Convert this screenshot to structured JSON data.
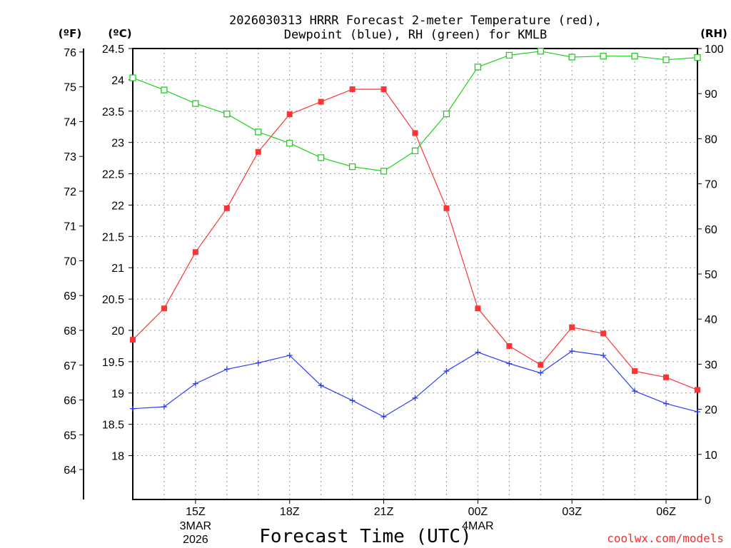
{
  "chart_data": {
    "type": "line",
    "title_lines": [
      "2026030313 HRRR Forecast 2-meter Temperature (red),",
      "Dewpoint (blue), RH (green) for KMLB"
    ],
    "units": {
      "fahrenheit": "(ºF)",
      "celsius": "(ºC)",
      "rh": "(RH)"
    },
    "xlabel": "Forecast Time (UTC)",
    "credit": "coolwx.com/models",
    "x_hours": [
      13,
      14,
      15,
      16,
      17,
      18,
      19,
      20,
      21,
      22,
      23,
      24,
      25,
      26,
      27,
      28,
      29,
      30,
      31
    ],
    "xlim": [
      13,
      31
    ],
    "x_ticks": [
      {
        "hour": 15,
        "label": "15Z",
        "sub1": "3MAR",
        "sub2": "2026"
      },
      {
        "hour": 18,
        "label": "18Z",
        "sub1": "",
        "sub2": ""
      },
      {
        "hour": 21,
        "label": "21Z",
        "sub1": "",
        "sub2": ""
      },
      {
        "hour": 24,
        "label": "00Z",
        "sub1": "4MAR",
        "sub2": ""
      },
      {
        "hour": 27,
        "label": "03Z",
        "sub1": "",
        "sub2": ""
      },
      {
        "hour": 30,
        "label": "06Z",
        "sub1": "",
        "sub2": ""
      }
    ],
    "celsius_axis": {
      "ylim": [
        17.3,
        24.5
      ],
      "ticks": [
        18,
        18.5,
        19,
        19.5,
        20,
        20.5,
        21,
        21.5,
        22,
        22.5,
        23,
        23.5,
        24,
        24.5
      ]
    },
    "fahrenheit_axis": {
      "ticks": [
        64,
        65,
        66,
        67,
        68,
        69,
        70,
        71,
        72,
        73,
        74,
        75,
        76
      ]
    },
    "rh_axis": {
      "ylim": [
        0,
        100
      ],
      "ticks": [
        0,
        10,
        20,
        30,
        40,
        50,
        60,
        70,
        80,
        90,
        100
      ]
    },
    "series": [
      {
        "name": "Temperature",
        "axis": "celsius",
        "color": "#ff3333",
        "marker": "filled-square",
        "values": [
          19.85,
          20.35,
          21.25,
          21.95,
          22.85,
          23.45,
          23.65,
          23.85,
          23.85,
          23.15,
          21.95,
          20.35,
          19.75,
          19.45,
          20.05,
          19.95,
          19.35,
          19.25,
          19.05
        ]
      },
      {
        "name": "Dewpoint",
        "axis": "celsius",
        "color": "#2b3cff",
        "marker": "plus",
        "values": [
          18.75,
          18.78,
          19.15,
          19.38,
          19.48,
          19.6,
          19.12,
          18.88,
          18.62,
          18.92,
          19.35,
          19.65,
          19.47,
          19.32,
          19.67,
          19.6,
          19.03,
          18.83,
          18.7
        ]
      },
      {
        "name": "RH",
        "axis": "rh",
        "color": "#1ed21e",
        "marker": "open-square",
        "values": [
          93.5,
          90.8,
          87.8,
          85.5,
          81.5,
          79.0,
          75.8,
          73.8,
          72.8,
          77.3,
          85.5,
          95.9,
          98.5,
          99.4,
          98.1,
          98.3,
          98.3,
          97.5,
          98.0
        ]
      }
    ]
  }
}
